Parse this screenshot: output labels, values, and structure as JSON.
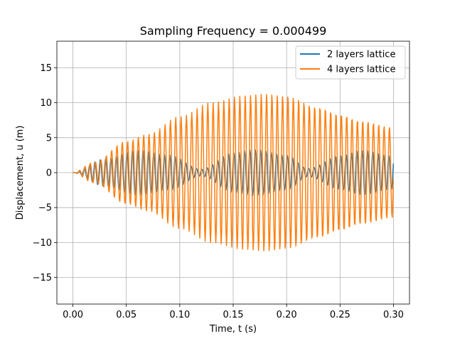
{
  "chart_data": {
    "type": "line",
    "title": "Sampling Frequency = 0.000499",
    "xlabel": "Time, t (s)",
    "ylabel": "Displacement, u (m)",
    "xlim": [
      -0.015,
      0.315
    ],
    "ylim": [
      -18.8,
      18.8
    ],
    "xticks": [
      0.0,
      0.05,
      0.1,
      0.15,
      0.2,
      0.25,
      0.3
    ],
    "xtick_labels": [
      "0.00",
      "0.05",
      "0.10",
      "0.15",
      "0.20",
      "0.25",
      "0.30"
    ],
    "yticks": [
      -15,
      -10,
      -5,
      0,
      5,
      10,
      15
    ],
    "ytick_labels": [
      "−15",
      "−10",
      "−5",
      "0",
      "5",
      "10",
      "15"
    ],
    "grid": true,
    "legend_position": "upper right",
    "sampling_interval": 0.000499,
    "t_end": 0.3,
    "series": [
      {
        "name": "2 layers lattice",
        "color": "#1f77b4",
        "description_values": "oscillation, envelope amplitude ~3.2 with beats (max near t=0.06, 0.17, 0.27; min near t=0.12, 0.22)",
        "envelope_points": [
          [
            0.0,
            0.0
          ],
          [
            0.03,
            2.0
          ],
          [
            0.06,
            3.3
          ],
          [
            0.09,
            2.5
          ],
          [
            0.12,
            0.5
          ],
          [
            0.15,
            2.8
          ],
          [
            0.17,
            3.3
          ],
          [
            0.2,
            2.5
          ],
          [
            0.22,
            0.6
          ],
          [
            0.25,
            2.5
          ],
          [
            0.27,
            3.3
          ],
          [
            0.3,
            2.4
          ]
        ],
        "carrier_frequency": 200
      },
      {
        "name": "4 layers lattice",
        "color": "#ff7f0e",
        "envelope_points": [
          [
            0.0,
            0.0
          ],
          [
            0.02,
            1.5
          ],
          [
            0.05,
            4.5
          ],
          [
            0.07,
            5.5
          ],
          [
            0.1,
            8.0
          ],
          [
            0.13,
            10.0
          ],
          [
            0.16,
            11.0
          ],
          [
            0.18,
            11.3
          ],
          [
            0.2,
            11.0
          ],
          [
            0.23,
            9.5
          ],
          [
            0.25,
            8.5
          ],
          [
            0.27,
            7.5
          ],
          [
            0.3,
            6.5
          ]
        ],
        "carrier_frequency": 200
      }
    ]
  }
}
